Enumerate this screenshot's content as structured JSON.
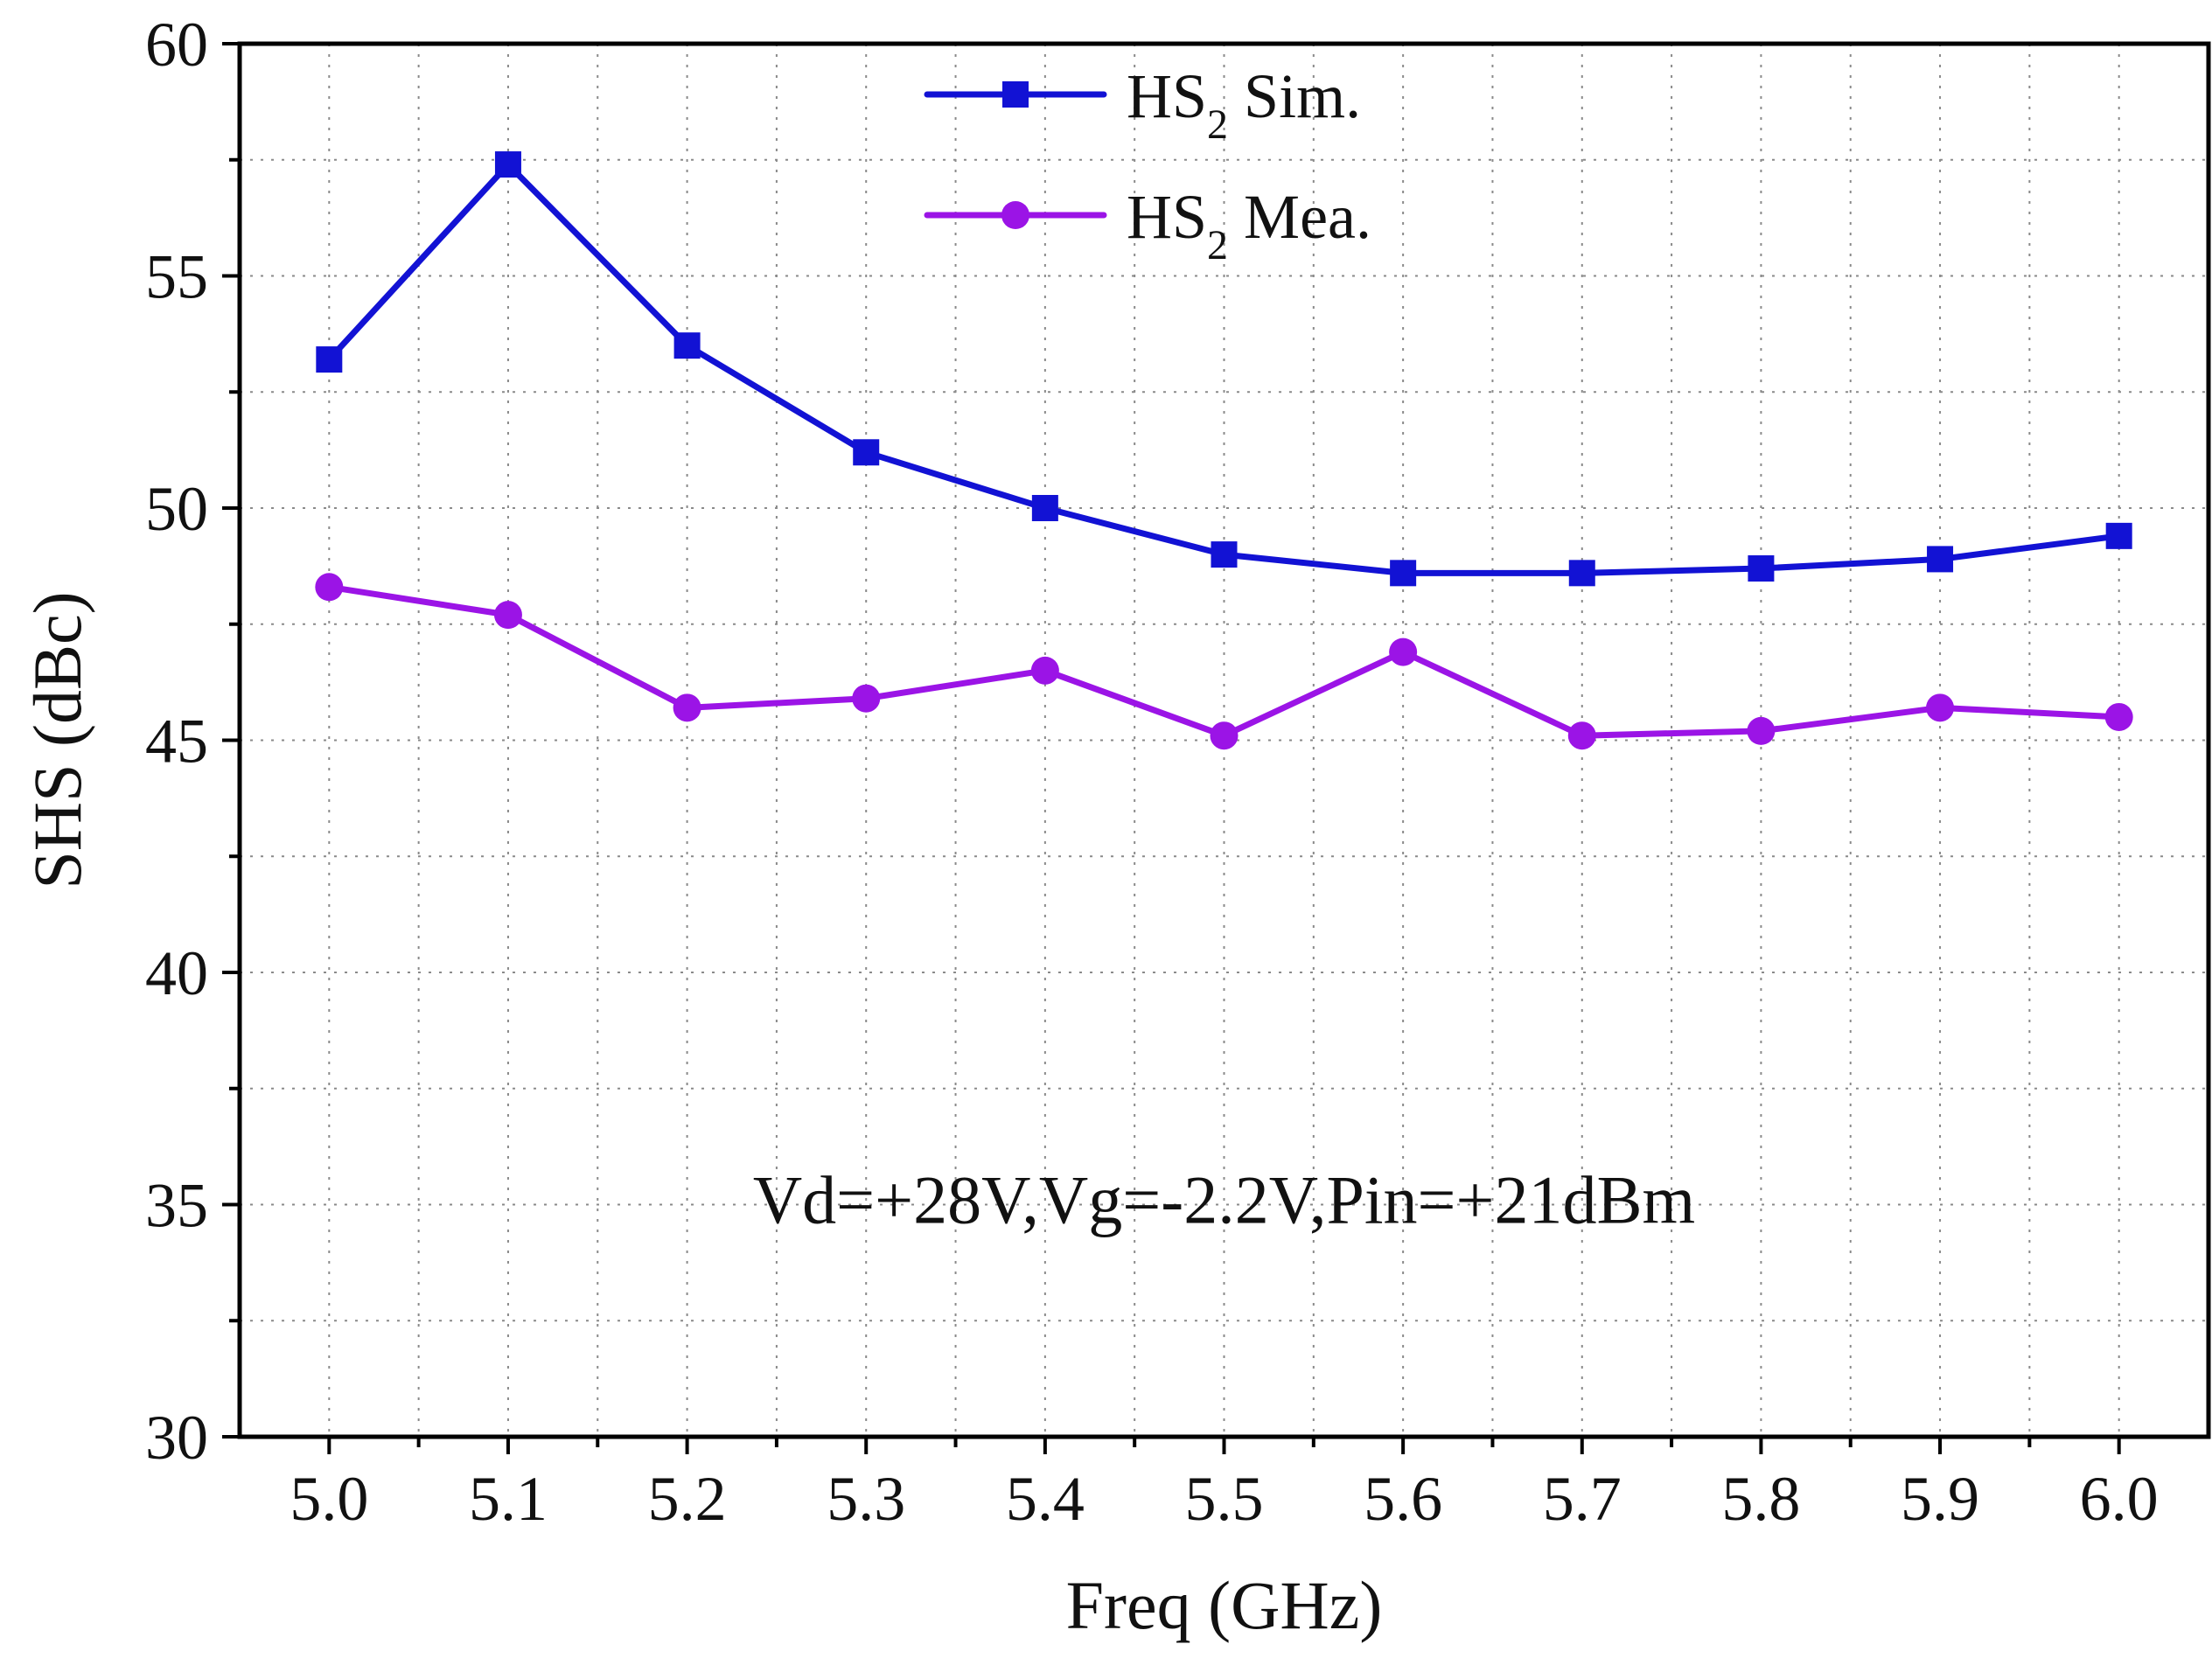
{
  "chart_data": {
    "type": "line",
    "title": "",
    "xlabel": "Freq (GHz)",
    "ylabel": "SHS (dBc)",
    "xlim": [
      4.95,
      6.05
    ],
    "ylim": [
      30,
      60
    ],
    "grid": true,
    "x": [
      5.0,
      5.1,
      5.2,
      5.3,
      5.4,
      5.5,
      5.6,
      5.7,
      5.8,
      5.9,
      6.0
    ],
    "x_tick_values": [
      5.0,
      5.1,
      5.2,
      5.3,
      5.4,
      5.5,
      5.6,
      5.7,
      5.8,
      5.9,
      6.0
    ],
    "x_tick_labels": [
      "5.0",
      "5.1",
      "5.2",
      "5.3",
      "5.4",
      "5.5",
      "5.6",
      "5.7",
      "5.8",
      "5.9",
      "6.0"
    ],
    "y_tick_values": [
      30,
      35,
      40,
      45,
      50,
      55,
      60
    ],
    "y_tick_labels": [
      "30",
      "35",
      "40",
      "45",
      "50",
      "55",
      "60"
    ],
    "legend_position": "top-center",
    "series": [
      {
        "name": "HS2 Sim.",
        "legend_main": "HS",
        "legend_sub": "2",
        "legend_tail": " Sim.",
        "color": "#1212d4",
        "marker": "square",
        "line_style": "solid",
        "values": [
          53.2,
          57.4,
          53.5,
          51.2,
          50.0,
          49.0,
          48.6,
          48.6,
          48.7,
          48.9,
          49.4
        ]
      },
      {
        "name": "HS2 Mea.",
        "legend_main": "HS",
        "legend_sub": "2",
        "legend_tail": " Mea.",
        "color": "#9b14e6",
        "marker": "circle",
        "line_style": "solid",
        "values": [
          48.3,
          47.7,
          45.7,
          45.9,
          46.5,
          45.1,
          46.9,
          45.1,
          45.2,
          45.7,
          45.5
        ]
      }
    ],
    "annotations": [
      {
        "text": "Vd=+28V,Vg=-2.2V,Pin=+21dBm",
        "x": 5.5,
        "y": 34.6
      }
    ]
  }
}
